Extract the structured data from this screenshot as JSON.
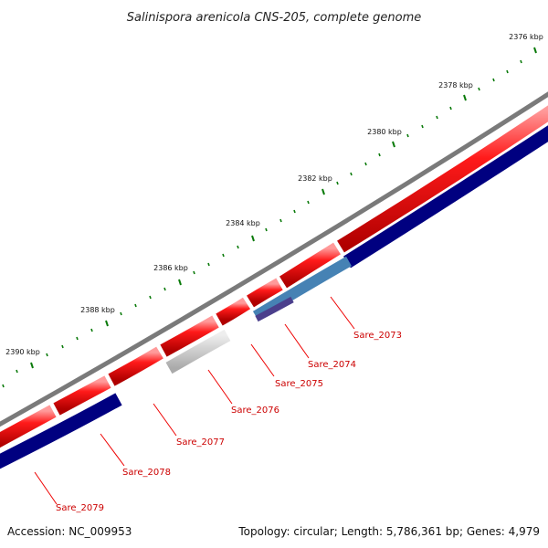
{
  "title": "Salinispora arenicola CNS-205, complete genome",
  "accession_text": "Accession: NC_009953",
  "summary_text": "Topology: circular; Length: 5,786,361 bp; Genes: 4,979",
  "colors": {
    "backbone": "#7a7a7a",
    "forward_cds": "#ee0000",
    "reverse_cds": "#000080",
    "reverse_light": "#4682b4",
    "reverse_purple": "#4b3f8c",
    "grey_feature": "#c0c0c0",
    "tick": "#0a7a0a",
    "gene_label": "#cc0000"
  },
  "ticks": [
    {
      "label": "2376 kbp"
    },
    {
      "label": "2378 kbp"
    },
    {
      "label": "2380 kbp"
    },
    {
      "label": "2382 kbp"
    },
    {
      "label": "2384 kbp"
    },
    {
      "label": "2386 kbp"
    },
    {
      "label": "2388 kbp"
    },
    {
      "label": "2390 kbp"
    }
  ],
  "genes": [
    {
      "label": "Sare_2073"
    },
    {
      "label": "Sare_2074"
    },
    {
      "label": "Sare_2075"
    },
    {
      "label": "Sare_2076"
    },
    {
      "label": "Sare_2077"
    },
    {
      "label": "Sare_2078"
    },
    {
      "label": "Sare_2079"
    }
  ]
}
